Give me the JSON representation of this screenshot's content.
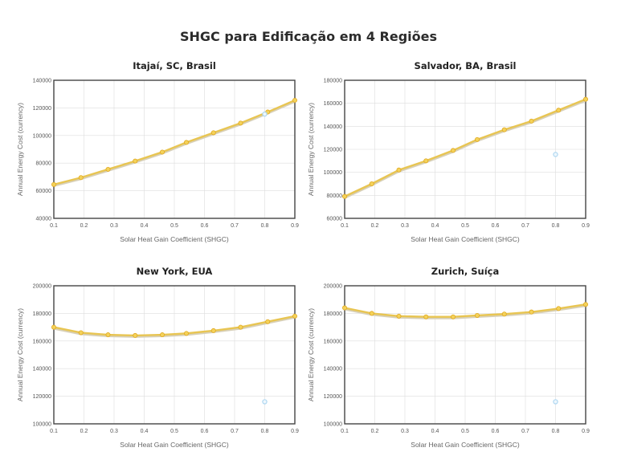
{
  "title": "SHGC para Edificação em 4 Regiões",
  "colors": {
    "line": "#e8c552",
    "line_shadow": "#d8d0b8",
    "point": "#f4d25a",
    "point_stroke": "#e0a820",
    "outlier": "#a8d4f0",
    "grid": "#dddddd",
    "frame": "#444444"
  },
  "chart_data": [
    {
      "type": "line",
      "title": "Itajaí, SC, Brasil",
      "xlabel": "Solar Heat Gain Coefficient (SHGC)",
      "ylabel": "Annual Energy Cost (currency)",
      "xlim": [
        0.1,
        0.9
      ],
      "ylim": [
        40000,
        140000
      ],
      "xticks": [
        "0.1",
        "0.2",
        "0.3",
        "0.4",
        "0.5",
        "0.6",
        "0.7",
        "0.8",
        "0.9"
      ],
      "yticks": [
        "40000",
        "60000",
        "80000",
        "100000",
        "120000",
        "140000"
      ],
      "grid": true,
      "series": [
        {
          "x": [
            0.1,
            0.19,
            0.28,
            0.37,
            0.46,
            0.54,
            0.63,
            0.72,
            0.81,
            0.9
          ],
          "y": [
            64500,
            69500,
            75500,
            81500,
            88000,
            95000,
            102000,
            109000,
            117000,
            125500
          ]
        }
      ],
      "outlier": {
        "x": 0.8,
        "y": 115500
      }
    },
    {
      "type": "line",
      "title": "Salvador, BA, Brasil",
      "xlabel": "Solar Heat Gain Coefficient (SHGC)",
      "ylabel": "Annual Energy Cost (currency)",
      "xlim": [
        0.1,
        0.9
      ],
      "ylim": [
        60000,
        180000
      ],
      "xticks": [
        "0.1",
        "0.2",
        "0.3",
        "0.4",
        "0.5",
        "0.6",
        "0.7",
        "0.8",
        "0.9"
      ],
      "yticks": [
        "60000",
        "80000",
        "100000",
        "120000",
        "140000",
        "160000",
        "180000"
      ],
      "grid": true,
      "series": [
        {
          "x": [
            0.1,
            0.19,
            0.28,
            0.37,
            0.46,
            0.54,
            0.63,
            0.72,
            0.81,
            0.9
          ],
          "y": [
            79000,
            90000,
            102000,
            110000,
            119000,
            128500,
            137000,
            144500,
            154000,
            163500
          ]
        }
      ],
      "outlier": {
        "x": 0.8,
        "y": 115500
      }
    },
    {
      "type": "line",
      "title": "New York, EUA",
      "xlabel": "Solar Heat Gain Coefficient (SHGC)",
      "ylabel": "Annual Energy Cost (currency)",
      "xlim": [
        0.1,
        0.9
      ],
      "ylim": [
        100000,
        200000
      ],
      "xticks": [
        "0.1",
        "0.2",
        "0.3",
        "0.4",
        "0.5",
        "0.6",
        "0.7",
        "0.8",
        "0.9"
      ],
      "yticks": [
        "100000",
        "120000",
        "140000",
        "160000",
        "180000",
        "200000"
      ],
      "grid": true,
      "series": [
        {
          "x": [
            0.1,
            0.19,
            0.28,
            0.37,
            0.46,
            0.54,
            0.63,
            0.72,
            0.81,
            0.9
          ],
          "y": [
            170000,
            166000,
            164500,
            164000,
            164500,
            165500,
            167500,
            170000,
            174000,
            178000
          ]
        }
      ],
      "outlier": {
        "x": 0.8,
        "y": 116000
      }
    },
    {
      "type": "line",
      "title": "Zurich, Suíça",
      "xlabel": "Solar Heat Gain Coefficient (SHGC)",
      "ylabel": "Annual Energy Cost (currency)",
      "xlim": [
        0.1,
        0.9
      ],
      "ylim": [
        100000,
        200000
      ],
      "xticks": [
        "0.1",
        "0.2",
        "0.3",
        "0.4",
        "0.5",
        "0.6",
        "0.7",
        "0.8",
        "0.9"
      ],
      "yticks": [
        "100000",
        "120000",
        "140000",
        "160000",
        "180000",
        "200000"
      ],
      "grid": true,
      "series": [
        {
          "x": [
            0.1,
            0.19,
            0.28,
            0.37,
            0.46,
            0.54,
            0.63,
            0.72,
            0.81,
            0.9
          ],
          "y": [
            184000,
            180000,
            178000,
            177500,
            177500,
            178500,
            179500,
            181000,
            183500,
            186500
          ]
        }
      ],
      "outlier": {
        "x": 0.8,
        "y": 116000
      }
    }
  ]
}
